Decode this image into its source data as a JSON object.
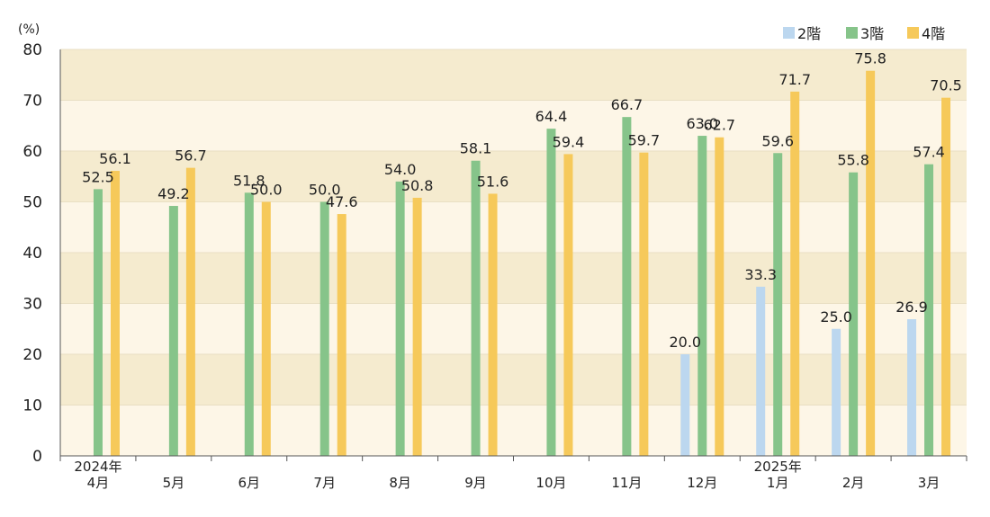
{
  "chart_data": {
    "type": "bar",
    "unit_label": "(%)",
    "ylim": [
      0,
      80
    ],
    "yticks": [
      "0",
      "10",
      "20",
      "30",
      "40",
      "50",
      "60",
      "70",
      "80"
    ],
    "categories": [
      {
        "month": "4月",
        "year": "2024年"
      },
      {
        "month": "5月",
        "year": ""
      },
      {
        "month": "6月",
        "year": ""
      },
      {
        "month": "7月",
        "year": ""
      },
      {
        "month": "8月",
        "year": ""
      },
      {
        "month": "9月",
        "year": ""
      },
      {
        "month": "10月",
        "year": ""
      },
      {
        "month": "11月",
        "year": ""
      },
      {
        "month": "12月",
        "year": ""
      },
      {
        "month": "1月",
        "year": "2025年"
      },
      {
        "month": "2月",
        "year": ""
      },
      {
        "month": "3月",
        "year": ""
      }
    ],
    "series": [
      {
        "name": "2階",
        "color": "#bcd7ef",
        "values": [
          null,
          null,
          null,
          null,
          null,
          null,
          null,
          null,
          20.0,
          33.3,
          25.0,
          26.9
        ]
      },
      {
        "name": "3階",
        "color": "#86c48a",
        "values": [
          52.5,
          49.2,
          51.8,
          50.0,
          54.0,
          58.1,
          64.4,
          66.7,
          63.0,
          59.6,
          55.8,
          57.4
        ]
      },
      {
        "name": "4階",
        "color": "#f6c95a",
        "values": [
          56.1,
          56.7,
          50.0,
          47.6,
          50.8,
          51.6,
          59.4,
          59.7,
          62.7,
          71.7,
          75.8,
          70.5
        ]
      }
    ],
    "band_colors": [
      "#f5ebcf",
      "#fdf6e7"
    ],
    "grid": true,
    "legend_position": "top-right"
  }
}
